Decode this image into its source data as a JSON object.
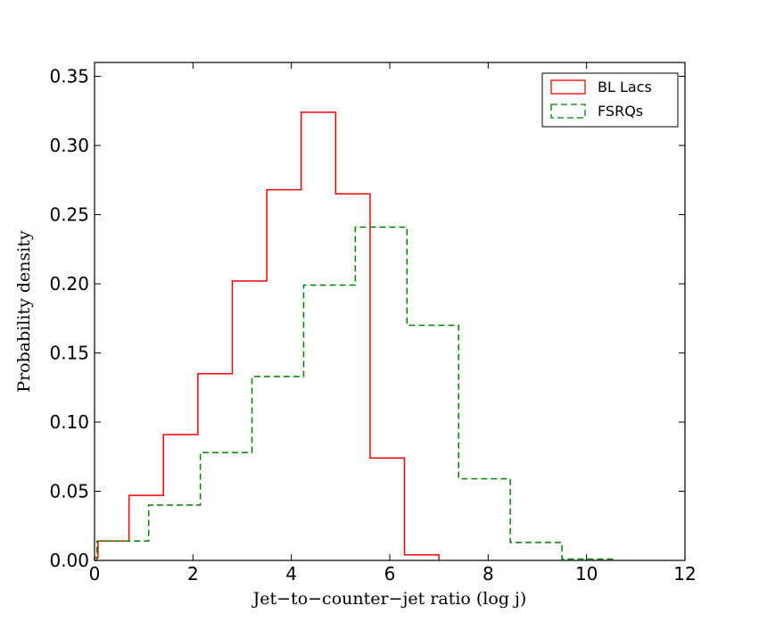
{
  "chart_data": {
    "type": "histogram",
    "xlabel": "Jet−to−counter−jet ratio (log j)",
    "ylabel": "Probability density",
    "xlim": [
      0,
      12
    ],
    "ylim": [
      0,
      0.36
    ],
    "xticks": [
      0,
      2,
      4,
      6,
      8,
      10,
      12
    ],
    "yticks": [
      0.0,
      0.05,
      0.1,
      0.15,
      0.2,
      0.25,
      0.3,
      0.35
    ],
    "xtick_labels": [
      "0",
      "2",
      "4",
      "6",
      "8",
      "10",
      "12"
    ],
    "ytick_labels": [
      "0.00",
      "0.05",
      "0.10",
      "0.15",
      "0.20",
      "0.25",
      "0.30",
      "0.35"
    ],
    "legend_position": "top-right",
    "series": [
      {
        "name": "BL Lacs",
        "style": "solid",
        "color": "#ff0000",
        "bin_edges": [
          0.0,
          0.07,
          0.7,
          1.4,
          2.1,
          2.8,
          3.5,
          4.2,
          4.9,
          5.6,
          6.3,
          7.0
        ],
        "values": [
          0.002,
          0.014,
          0.047,
          0.091,
          0.135,
          0.202,
          0.268,
          0.324,
          0.265,
          0.074,
          0.004
        ]
      },
      {
        "name": "FSRQs",
        "style": "dashed",
        "color": "#008000",
        "bin_edges": [
          0.0,
          0.05,
          1.1,
          2.15,
          3.2,
          4.25,
          5.3,
          6.35,
          7.4,
          8.45,
          9.5,
          10.55
        ],
        "values": [
          0.0,
          0.014,
          0.04,
          0.078,
          0.133,
          0.199,
          0.241,
          0.17,
          0.059,
          0.013,
          0.001
        ]
      }
    ]
  }
}
